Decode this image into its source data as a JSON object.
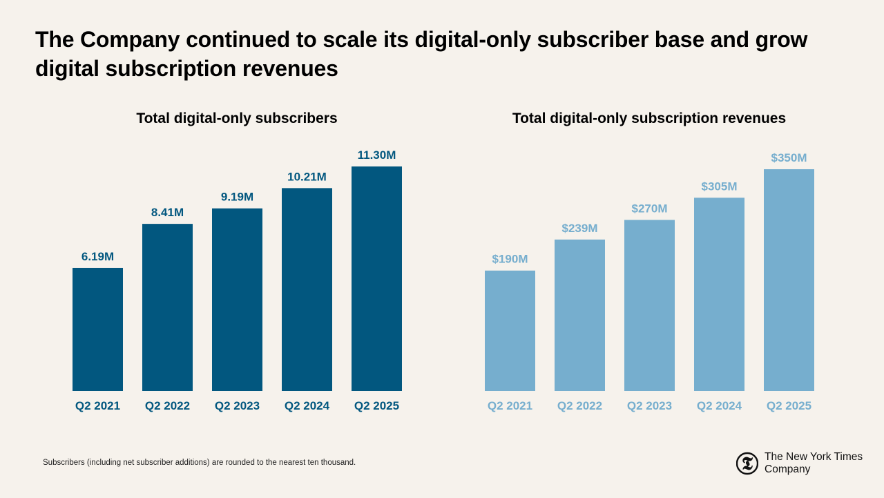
{
  "headline": "The Company continued to scale its digital-only subscriber base and grow digital subscription revenues",
  "footnote": "Subscribers (including net subscriber additions) are rounded to the nearest ten thousand.",
  "logo": {
    "line1": "The New York Times",
    "line2": "Company",
    "glyph": "𝕿"
  },
  "colors": {
    "background": "#f6f2ec",
    "subscribers": "#02577f",
    "revenues": "#76aece"
  },
  "chart_data": [
    {
      "type": "bar",
      "title": "Total digital-only subscribers",
      "categories": [
        "Q2 2021",
        "Q2 2022",
        "Q2 2023",
        "Q2 2024",
        "Q2 2025"
      ],
      "values": [
        6.19,
        8.41,
        9.19,
        10.21,
        11.3
      ],
      "data_labels": [
        "6.19M",
        "8.41M",
        "9.19M",
        "10.21M",
        "11.30M"
      ],
      "unit": "millions",
      "ylim": [
        0,
        11.3
      ],
      "grid": false,
      "color": "#02577f"
    },
    {
      "type": "bar",
      "title": "Total digital-only subscription revenues",
      "categories": [
        "Q2 2021",
        "Q2 2022",
        "Q2 2023",
        "Q2 2024",
        "Q2 2025"
      ],
      "values": [
        190,
        239,
        270,
        305,
        350
      ],
      "data_labels": [
        "$190M",
        "$239M",
        "$270M",
        "$305M",
        "$350M"
      ],
      "unit": "USD millions",
      "ylim": [
        0,
        350
      ],
      "grid": false,
      "color": "#76aece"
    }
  ]
}
